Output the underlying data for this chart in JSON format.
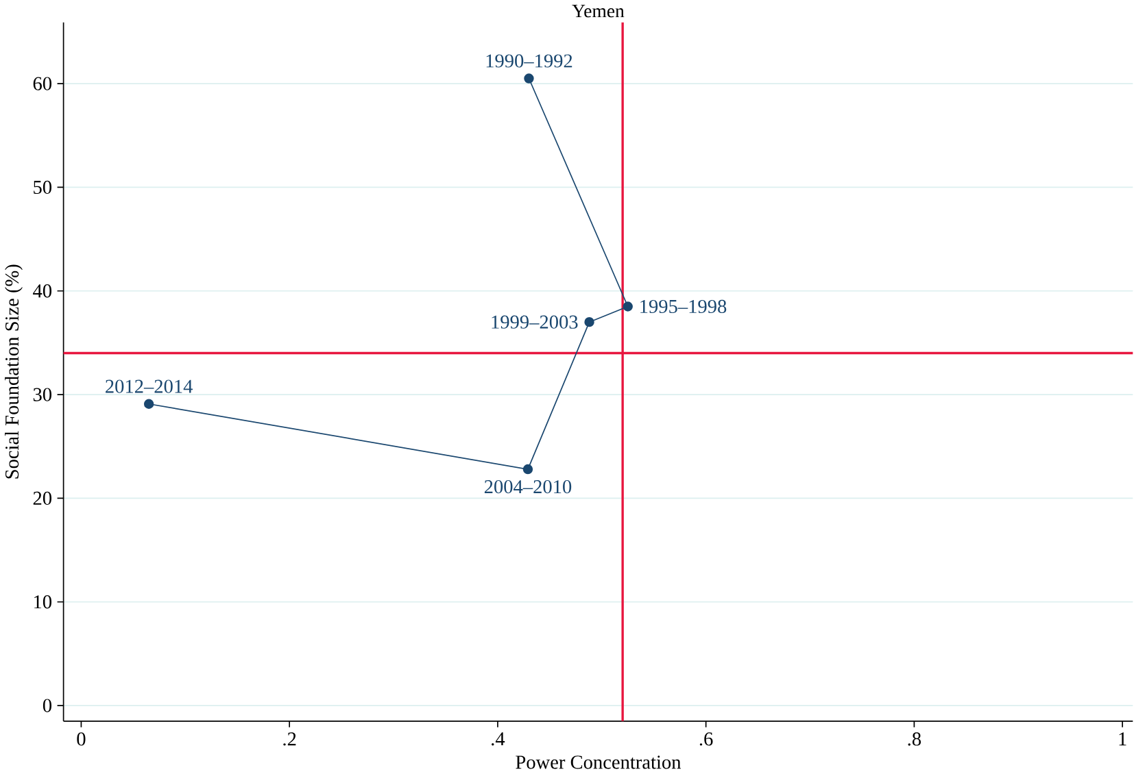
{
  "chart_data": {
    "type": "line",
    "title": "Yemen",
    "xlabel": "Power Concentration",
    "ylabel": "Social Foundation Size (%)",
    "x": [
      0.43,
      0.525,
      0.488,
      0.429,
      0.065
    ],
    "series": [
      {
        "color": "#1a476f",
        "values": [
          60.5,
          38.5,
          37.0,
          22.8,
          29.1
        ]
      }
    ],
    "marker": "circle",
    "line_style": "solid",
    "grid": "y",
    "xlim": [
      -0.017,
      1.01
    ],
    "ylim": [
      -1.5,
      65.9
    ],
    "xticks": [
      0,
      {
        "value": 0.2,
        "label": ".2"
      },
      {
        "value": 0.4,
        "label": ".4"
      },
      {
        "value": 0.6,
        "label": ".6"
      },
      {
        "value": 0.8,
        "label": ".8"
      },
      1
    ],
    "yticks": [
      0,
      10,
      20,
      30,
      40,
      50,
      60
    ],
    "ref_lines": [
      {
        "axis": "x",
        "value": 0.52,
        "color": "#e8173f"
      },
      {
        "axis": "y",
        "value": 34,
        "color": "#e8173f"
      }
    ],
    "annotations": [
      {
        "text": "1990–1992",
        "x": 0.43,
        "y": 60.5
      },
      {
        "text": "1995–1998",
        "x": 0.525,
        "y": 38.5
      },
      {
        "text": "1999–2003",
        "x": 0.488,
        "y": 37.0
      },
      {
        "text": "2004–2010",
        "x": 0.429,
        "y": 22.8
      },
      {
        "text": "2012–2014",
        "x": 0.065,
        "y": 29.1
      }
    ]
  }
}
